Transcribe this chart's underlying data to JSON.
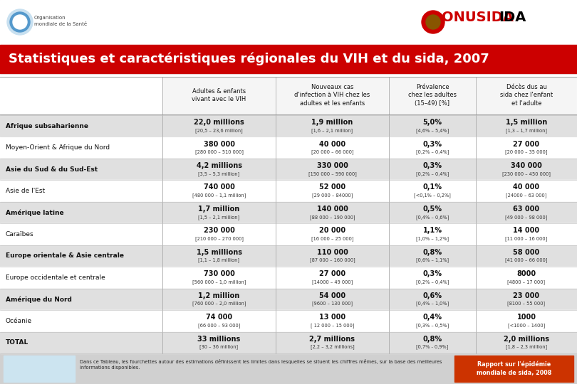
{
  "title": "Statistiques et caractéristiques régionales du VIH et du sida, 2007",
  "title_bg": "#cc0000",
  "title_color": "#ffffff",
  "col_headers": [
    "Adultes & enfants\nvivant avec le VIH",
    "Nouveaux cas\nd'infection à VIH chez les\nadultes et les enfants",
    "Prévalence\nchez les adultes\n(15–49) [%]",
    "Décès dus au\nsida chez l'enfant\net l'adulte"
  ],
  "rows": [
    {
      "region": "Afrique subsaharienne",
      "bold": true,
      "shade": true,
      "col1_main": "22,0 millions",
      "col1_sub": "[20,5 – 23,6 million]",
      "col2_main": "1,9 million",
      "col2_sub": "[1,6 – 2,1 million]",
      "col3_main": "5,0%",
      "col3_sub": "[4,6% – 5,4%]",
      "col4_main": "1,5 million",
      "col4_sub": "[1,3 – 1,7 million]"
    },
    {
      "region": "Moyen-Orient & Afrique du Nord",
      "bold": false,
      "shade": false,
      "col1_main": "380 000",
      "col1_sub": "[280 000 – 510 000]",
      "col2_main": "40 000",
      "col2_sub": "[20 000 – 66 000]",
      "col3_main": "0,3%",
      "col3_sub": "[0,2% – 0,4%]",
      "col4_main": "27 000",
      "col4_sub": "[20 000 – 35 000]"
    },
    {
      "region": "Asie du Sud & du Sud-Est",
      "bold": true,
      "shade": true,
      "col1_main": "4,2 millions",
      "col1_sub": "[3,5 – 5,3 million]",
      "col2_main": "330 000",
      "col2_sub": "[150 000 – 590 000]",
      "col3_main": "0,3%",
      "col3_sub": "[0,2% – 0,4%]",
      "col4_main": "340 000",
      "col4_sub": "[230 000 – 450 000]"
    },
    {
      "region": "Asie de l'Est",
      "bold": false,
      "shade": false,
      "col1_main": "740 000",
      "col1_sub": "[480 000 – 1,1 million]",
      "col2_main": "52 000",
      "col2_sub": "[29 000 – 84000]",
      "col3_main": "0,1%",
      "col3_sub": "[<0,1% – 0,2%]",
      "col4_main": "40 000",
      "col4_sub": "[24000 – 63 000]"
    },
    {
      "region": "Amérique latine",
      "bold": true,
      "shade": true,
      "col1_main": "1,7 million",
      "col1_sub": "[1,5 – 2,1 million]",
      "col2_main": "140 000",
      "col2_sub": "[88 000 – 190 000]",
      "col3_main": "0,5%",
      "col3_sub": "[0,4% – 0,6%]",
      "col4_main": "63 000",
      "col4_sub": "[49 000 – 98 000]"
    },
    {
      "region": "Caraïbes",
      "bold": false,
      "shade": false,
      "col1_main": "230 000",
      "col1_sub": "[210 000 – 270 000]",
      "col2_main": "20 000",
      "col2_sub": "[16 000 – 25 000]",
      "col3_main": "1,1%",
      "col3_sub": "[1,0% – 1,2%]",
      "col4_main": "14 000",
      "col4_sub": "[11 000 – 16 000]"
    },
    {
      "region": "Europe orientale & Asie centrale",
      "bold": true,
      "shade": true,
      "col1_main": "1,5 millions",
      "col1_sub": "[1,1 – 1,8 million]",
      "col2_main": "110 000",
      "col2_sub": "[87 000 – 160 000]",
      "col3_main": "0,8%",
      "col3_sub": "[0,6% – 1,1%]",
      "col4_main": "58 000",
      "col4_sub": "[41 000 – 66 000]"
    },
    {
      "region": "Europe occidentale et centrale",
      "bold": false,
      "shade": false,
      "col1_main": "730 000",
      "col1_sub": "[560 000 – 1,0 million]",
      "col2_main": "27 000",
      "col2_sub": "[14000 – 49 000]",
      "col3_main": "0,3%",
      "col3_sub": "[0,2% – 0,4%]",
      "col4_main": "8000",
      "col4_sub": "[4800 – 17 000]"
    },
    {
      "region": "Amérique du Nord",
      "bold": true,
      "shade": true,
      "col1_main": "1,2 million",
      "col1_sub": "[760 000 – 2,0 million]",
      "col2_main": "54 000",
      "col2_sub": "[9600 – 130 000]",
      "col3_main": "0,6%",
      "col3_sub": "[0,4% – 1,0%]",
      "col4_main": "23 000",
      "col4_sub": "[8100 – 55 000]"
    },
    {
      "region": "Océanie",
      "bold": false,
      "shade": false,
      "col1_main": "74 000",
      "col1_sub": "[66 000 – 93 000]",
      "col2_main": "13 000",
      "col2_sub": "[ 12 000 – 15 000]",
      "col3_main": "0,4%",
      "col3_sub": "[0,3% – 0,5%]",
      "col4_main": "1000",
      "col4_sub": "[<1000 – 1400]"
    },
    {
      "region": "TOTAL",
      "bold": true,
      "shade": true,
      "col1_main": "33 millions",
      "col1_sub": "[30 – 36 million]",
      "col2_main": "2,7 millions",
      "col2_sub": "[2,2 – 3,2 millions]",
      "col3_main": "0,8%",
      "col3_sub": "[0,7% - 0,9%]",
      "col4_main": "2,0 millions",
      "col4_sub": "[1,8 – 2,3 million]"
    }
  ],
  "footer_note": "Dans ce Tableau, les fourchettes autour des estimations définissent les limites dans lesquelles se situent les chiffres mêmes, sur la base des meilleures\ninformations disponibles.",
  "footer_button": "Rapport sur l'épidémie\nmondiale de sida, 2008",
  "bg_color": "#ebebeb",
  "shade_color": "#e0e0e0",
  "footer_bg": "#d0d0d0",
  "footer_left_bg": "#cce4f0",
  "footer_btn_bg": "#cc3300"
}
